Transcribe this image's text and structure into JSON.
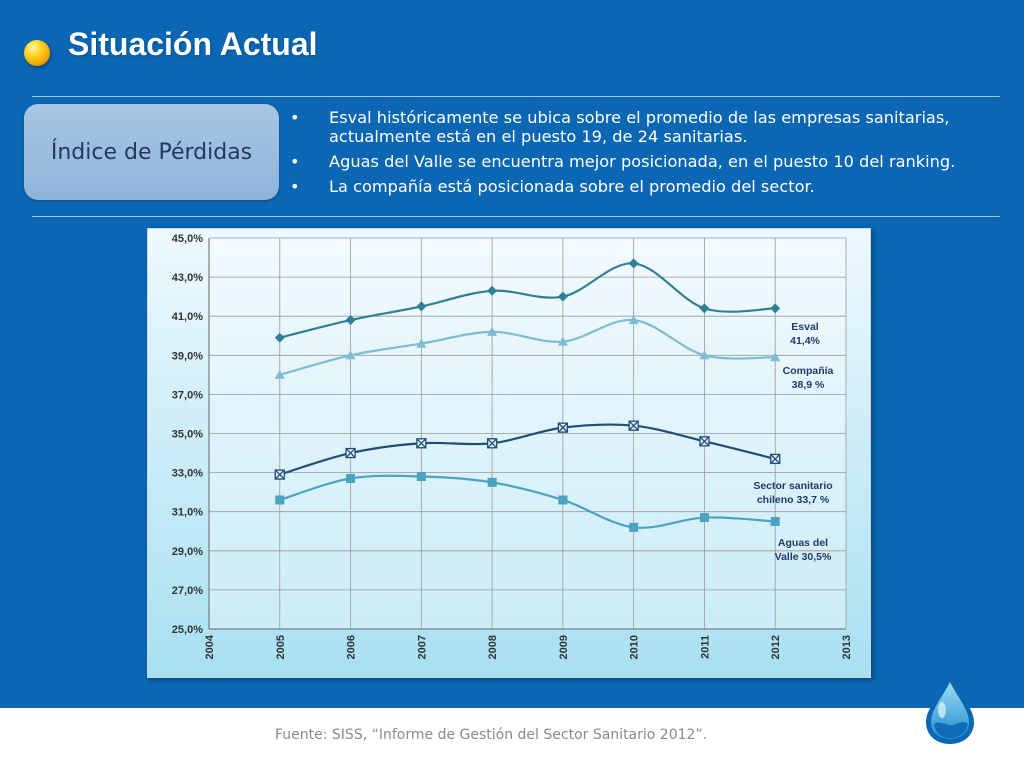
{
  "slide": {
    "title": "Situación Actual",
    "section_label": "Índice de Pérdidas",
    "bullet_symbol": "•",
    "bullets": [
      "Esval  históricamente se ubica sobre el promedio de las empresas sanitarias, actualmente está en el puesto 19, de 24 sanitarias.",
      "Aguas del Valle se encuentra mejor posicionada, en el puesto 10 del ranking.",
      "La compañía está posicionada sobre  el promedio del sector."
    ],
    "footer": "Fuente: SISS, “Informe de Gestión del Sector Sanitario 2012”."
  },
  "colors": {
    "background": "#0b66b3",
    "esval": "#2f7f96",
    "compania": "#7cbcd4",
    "sector": "#1f4e79",
    "aguas": "#4aa3bf",
    "label_text": "#1f3a6b"
  },
  "chart_data": {
    "type": "line",
    "x": [
      2005,
      2006,
      2007,
      2008,
      2009,
      2010,
      2011,
      2012
    ],
    "x_ticks": [
      "2004",
      "2005",
      "2006",
      "2007",
      "2008",
      "2009",
      "2010",
      "2011",
      "2012",
      "2013"
    ],
    "xlim": [
      2004,
      2013
    ],
    "ylim": [
      25,
      45
    ],
    "y_ticks": [
      "25,0%",
      "27,0%",
      "29,0%",
      "31,0%",
      "33,0%",
      "35,0%",
      "37,0%",
      "39,0%",
      "41,0%",
      "43,0%",
      "45,0%"
    ],
    "grid": true,
    "series": [
      {
        "key": "esval",
        "marker": "diamond",
        "values": [
          39.9,
          40.8,
          41.5,
          42.3,
          42.0,
          43.7,
          41.4,
          41.4
        ],
        "label_lines": [
          "Esval",
          "41,4%"
        ]
      },
      {
        "key": "compania",
        "marker": "triangle",
        "values": [
          38.0,
          39.0,
          39.6,
          40.2,
          39.7,
          40.8,
          39.0,
          38.9
        ],
        "label_lines": [
          "Compañía",
          "38,9 %"
        ]
      },
      {
        "key": "sector",
        "marker": "x-square",
        "values": [
          32.9,
          34.0,
          34.5,
          34.5,
          35.3,
          35.4,
          34.6,
          33.7
        ],
        "label_lines": [
          "Sector sanitario",
          "chileno 33,7 %"
        ]
      },
      {
        "key": "aguas",
        "marker": "square",
        "values": [
          31.6,
          32.7,
          32.8,
          32.5,
          31.6,
          30.2,
          30.7,
          30.5
        ],
        "label_lines": [
          "Aguas del",
          "Valle 30,5%"
        ]
      }
    ]
  }
}
